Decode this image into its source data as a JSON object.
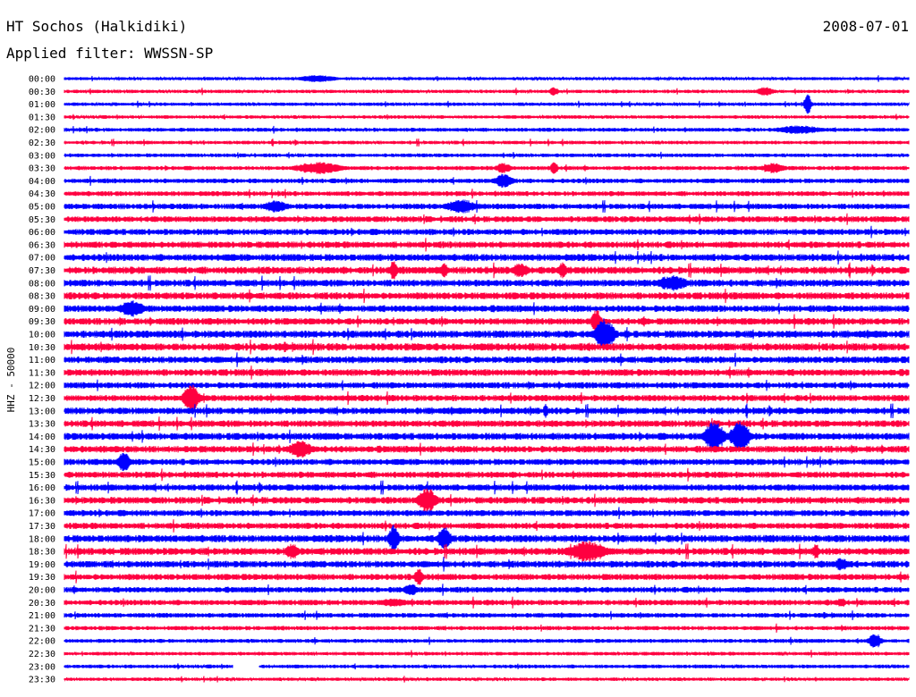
{
  "header": {
    "station": "HT Sochos (Halkidiki)",
    "date": "2008-07-01",
    "filter_label": "Applied filter:",
    "filter_value": "WWSSN-SP"
  },
  "chart_data": {
    "type": "line",
    "title": "HT Sochos (Halkidiki)",
    "ylabel": "HHZ - 50000",
    "grid": false,
    "legend": "none",
    "colors": {
      "even_rows": "#0000ff",
      "odd_rows": "#ff0040",
      "text": "#000000"
    },
    "rows": [
      "00:00",
      "00:30",
      "01:00",
      "01:30",
      "02:00",
      "02:30",
      "03:00",
      "03:30",
      "04:00",
      "04:30",
      "05:00",
      "05:30",
      "06:00",
      "06:30",
      "07:00",
      "07:30",
      "08:00",
      "08:30",
      "09:00",
      "09:30",
      "10:00",
      "10:30",
      "11:00",
      "11:30",
      "12:00",
      "12:30",
      "13:00",
      "13:30",
      "14:00",
      "14:30",
      "15:00",
      "15:30",
      "16:00",
      "16:30",
      "17:00",
      "17:30",
      "18:00",
      "18:30",
      "19:00",
      "19:30",
      "20:00",
      "20:30",
      "21:00",
      "21:30",
      "22:00",
      "22:30",
      "23:00",
      "23:30"
    ],
    "noise_level": [
      1.2,
      1.3,
      1.3,
      1.3,
      1.5,
      1.4,
      1.4,
      1.6,
      1.8,
      1.9,
      2.2,
      2.3,
      2.4,
      2.5,
      2.7,
      2.8,
      2.7,
      2.7,
      2.6,
      2.6,
      2.8,
      2.9,
      2.6,
      2.6,
      2.4,
      2.4,
      2.6,
      2.6,
      2.7,
      2.6,
      2.4,
      2.4,
      2.5,
      2.6,
      2.4,
      2.4,
      2.8,
      2.8,
      2.6,
      2.4,
      2.2,
      2.1,
      1.8,
      1.6,
      1.5,
      1.4,
      1.4,
      1.3
    ],
    "events": [
      {
        "row": 0,
        "t": 0.3,
        "amp": 4,
        "width": 0.025
      },
      {
        "row": 1,
        "t": 0.58,
        "amp": 5,
        "width": 0.006
      },
      {
        "row": 1,
        "t": 0.83,
        "amp": 5,
        "width": 0.012
      },
      {
        "row": 2,
        "t": 0.88,
        "amp": 14,
        "width": 0.004
      },
      {
        "row": 4,
        "t": 0.87,
        "amp": 5,
        "width": 0.03
      },
      {
        "row": 7,
        "t": 0.3,
        "amp": 7,
        "width": 0.03
      },
      {
        "row": 7,
        "t": 0.52,
        "amp": 6,
        "width": 0.01
      },
      {
        "row": 7,
        "t": 0.58,
        "amp": 9,
        "width": 0.004
      },
      {
        "row": 7,
        "t": 0.84,
        "amp": 6,
        "width": 0.015
      },
      {
        "row": 8,
        "t": 0.52,
        "amp": 8,
        "width": 0.012
      },
      {
        "row": 10,
        "t": 0.25,
        "amp": 7,
        "width": 0.015
      },
      {
        "row": 10,
        "t": 0.47,
        "amp": 8,
        "width": 0.02
      },
      {
        "row": 15,
        "t": 0.39,
        "amp": 12,
        "width": 0.005
      },
      {
        "row": 15,
        "t": 0.45,
        "amp": 8,
        "width": 0.005
      },
      {
        "row": 15,
        "t": 0.54,
        "amp": 9,
        "width": 0.01
      },
      {
        "row": 15,
        "t": 0.59,
        "amp": 10,
        "width": 0.005
      },
      {
        "row": 16,
        "t": 0.72,
        "amp": 9,
        "width": 0.02
      },
      {
        "row": 18,
        "t": 0.08,
        "amp": 10,
        "width": 0.015
      },
      {
        "row": 19,
        "t": 0.63,
        "amp": 14,
        "width": 0.006
      },
      {
        "row": 20,
        "t": 0.64,
        "amp": 18,
        "width": 0.012
      },
      {
        "row": 25,
        "t": 0.15,
        "amp": 16,
        "width": 0.01
      },
      {
        "row": 26,
        "t": 0.57,
        "amp": 9,
        "width": 0.003
      },
      {
        "row": 28,
        "t": 0.77,
        "amp": 18,
        "width": 0.012
      },
      {
        "row": 28,
        "t": 0.8,
        "amp": 18,
        "width": 0.012
      },
      {
        "row": 29,
        "t": 0.28,
        "amp": 10,
        "width": 0.015
      },
      {
        "row": 30,
        "t": 0.07,
        "amp": 12,
        "width": 0.008
      },
      {
        "row": 33,
        "t": 0.43,
        "amp": 14,
        "width": 0.012
      },
      {
        "row": 36,
        "t": 0.39,
        "amp": 16,
        "width": 0.006
      },
      {
        "row": 36,
        "t": 0.45,
        "amp": 14,
        "width": 0.008
      },
      {
        "row": 37,
        "t": 0.27,
        "amp": 10,
        "width": 0.008
      },
      {
        "row": 37,
        "t": 0.62,
        "amp": 12,
        "width": 0.025
      },
      {
        "row": 37,
        "t": 0.89,
        "amp": 10,
        "width": 0.004
      },
      {
        "row": 38,
        "t": 0.92,
        "amp": 8,
        "width": 0.008
      },
      {
        "row": 39,
        "t": 0.42,
        "amp": 9,
        "width": 0.006
      },
      {
        "row": 40,
        "t": 0.41,
        "amp": 8,
        "width": 0.008
      },
      {
        "row": 41,
        "t": 0.39,
        "amp": 5,
        "width": 0.02
      },
      {
        "row": 41,
        "t": 0.92,
        "amp": 6,
        "width": 0.006
      },
      {
        "row": 44,
        "t": 0.96,
        "amp": 9,
        "width": 0.008
      }
    ],
    "gap": {
      "row": 46,
      "t_start": 0.2,
      "t_end": 0.23
    }
  }
}
